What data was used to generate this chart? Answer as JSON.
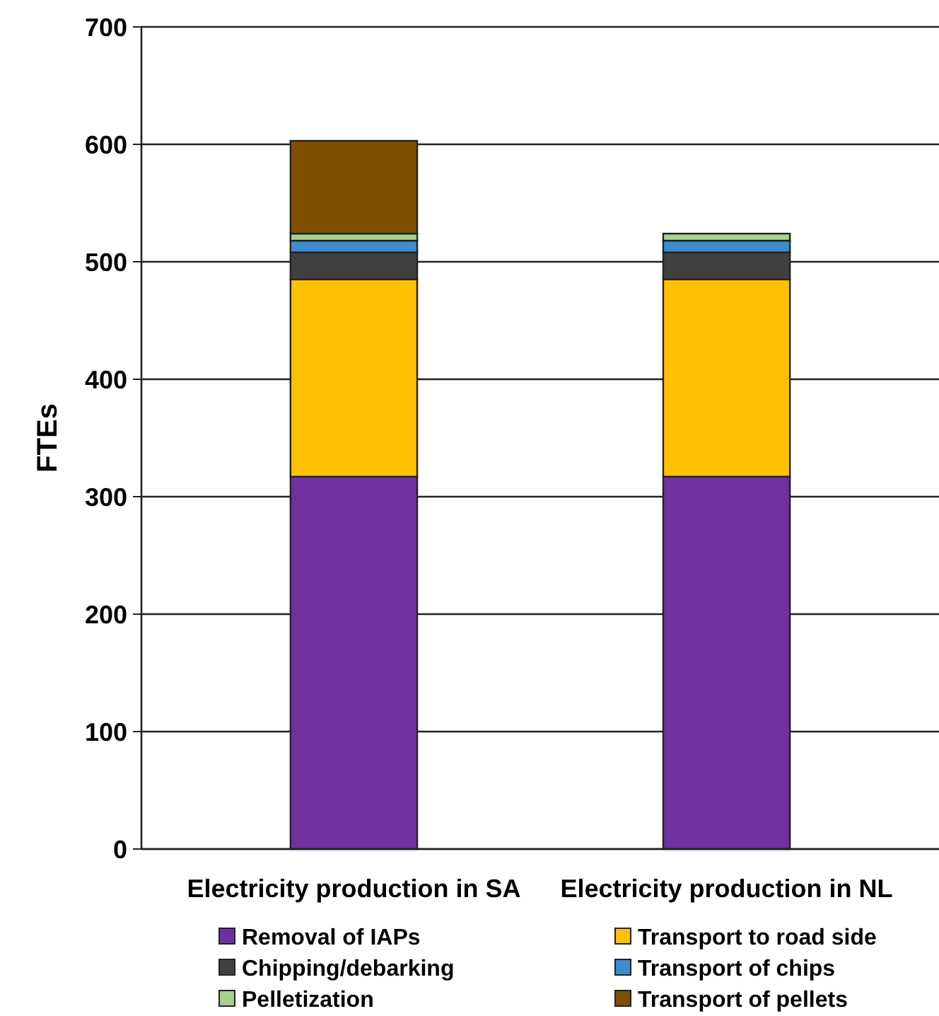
{
  "chart_data": {
    "type": "bar",
    "stacked": true,
    "ylabel": "FTEs",
    "categories": [
      "Electricity production in SA",
      "Electricity production in NL"
    ],
    "series": [
      {
        "name": "Removal of IAPs",
        "color": "#7030a0",
        "values": [
          317,
          317
        ]
      },
      {
        "name": "Transport to road side",
        "color": "#ffc000",
        "values": [
          168,
          168
        ]
      },
      {
        "name": "Chipping/debarking",
        "color": "#404040",
        "values": [
          23,
          23
        ]
      },
      {
        "name": "Transport of chips",
        "color": "#3c8dd0",
        "values": [
          10,
          10
        ]
      },
      {
        "name": "Pelletization",
        "color": "#a9d18e",
        "values": [
          6,
          6
        ]
      },
      {
        "name": "Transport of pellets",
        "color": "#7f5000",
        "values": [
          79,
          0
        ]
      }
    ],
    "ylim": [
      0,
      700
    ],
    "yticks": [
      0,
      100,
      200,
      300,
      400,
      500,
      600,
      700
    ],
    "grid": "y",
    "legend": "bottom"
  }
}
